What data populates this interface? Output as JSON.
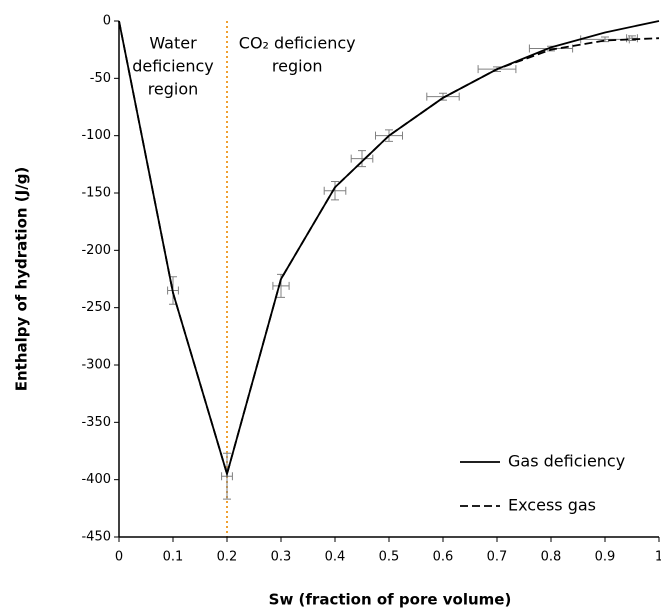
{
  "chart_data": {
    "type": "line",
    "xlabel": "Sw (fraction of pore volume)",
    "ylabel": "Enthalpy of hydration (J/g)",
    "x": [
      0,
      0.1,
      0.2,
      0.3,
      0.4,
      0.5,
      0.6,
      0.7,
      0.8,
      0.9,
      1
    ],
    "series": [
      {
        "name": "Gas deficiency",
        "color": "#000000",
        "dash": "solid",
        "values": [
          0,
          -237,
          -395,
          -225,
          -145,
          -100,
          -67,
          -42,
          -23,
          -10,
          0
        ]
      },
      {
        "name": "Excess gas",
        "color": "#000000",
        "dash": "dashed",
        "values": [
          0,
          -237,
          -395,
          -225,
          -145,
          -100,
          -67,
          -42,
          -25,
          -17,
          -15
        ]
      }
    ],
    "errorbars": {
      "color": "#808080",
      "x": [
        0.1,
        0.2,
        0.3,
        0.4,
        0.45,
        0.5,
        0.6,
        0.7,
        0.8,
        0.9,
        0.95
      ],
      "y": [
        -235,
        -397,
        -231,
        -148,
        -120,
        -100,
        -66,
        -42,
        -24,
        -16,
        -15
      ],
      "yerr": [
        12,
        20,
        10,
        8,
        7,
        5,
        3,
        2,
        2,
        2,
        2
      ],
      "xerr": [
        0.01,
        0.01,
        0.015,
        0.02,
        0.02,
        0.025,
        0.03,
        0.035,
        0.04,
        0.045,
        0.01
      ]
    },
    "vline": {
      "x": 0.2,
      "color": "#f0a030"
    },
    "annotations": [
      {
        "x": 0.1,
        "y": -20,
        "lines": [
          "Water",
          "deficiency",
          "region"
        ]
      },
      {
        "x": 0.33,
        "y": -20,
        "lines": [
          "CO₂ deficiency",
          "region"
        ]
      }
    ],
    "xlim": [
      0,
      1
    ],
    "ylim": [
      -450,
      0
    ],
    "xticks": [
      0,
      0.1,
      0.2,
      0.3,
      0.4,
      0.5,
      0.6,
      0.7,
      0.8,
      0.9,
      1
    ],
    "yticks": [
      0,
      -50,
      -100,
      -150,
      -200,
      -250,
      -300,
      -350,
      -400,
      -450
    ],
    "legend": "lower-right"
  }
}
